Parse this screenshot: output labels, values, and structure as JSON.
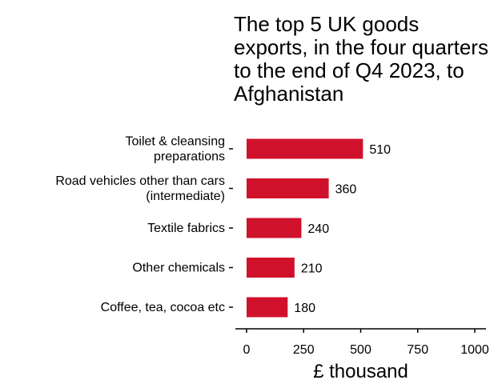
{
  "chart_data": {
    "type": "bar",
    "orientation": "horizontal",
    "title": "The top 5 UK goods exports, in the four quarters to the end of Q4 2023, to Afghanistan",
    "xlabel": "£ thousand",
    "ylabel": "",
    "xlim": [
      0,
      1000
    ],
    "x_ticks": [
      "0",
      "250",
      "500",
      "750",
      "1000"
    ],
    "grid": false,
    "legend": "none",
    "bar_color": "#d0112b",
    "categories": [
      [
        "Toilet & cleansing",
        "preparations"
      ],
      [
        "Road vehicles other than cars",
        "(intermediate)"
      ],
      [
        "Textile fabrics"
      ],
      [
        "Other chemicals"
      ],
      [
        "Coffee, tea, cocoa etc"
      ]
    ],
    "values": [
      510,
      360,
      240,
      210,
      180
    ],
    "value_labels": [
      "510",
      "360",
      "240",
      "210",
      "180"
    ]
  }
}
